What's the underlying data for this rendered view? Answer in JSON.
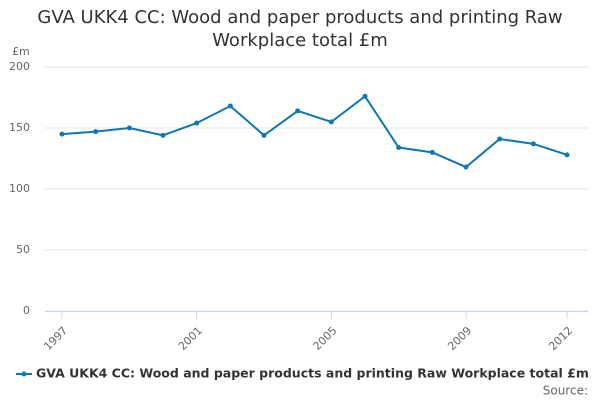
{
  "chart_data": {
    "type": "line",
    "title": "GVA UKK4 CC: Wood and paper products and printing Raw Workplace total £m",
    "y_label": "£m",
    "source": "Source:",
    "x": [
      1997,
      1998,
      1999,
      2000,
      2001,
      2002,
      2003,
      2004,
      2005,
      2006,
      2007,
      2008,
      2009,
      2010,
      2011,
      2012
    ],
    "series": [
      {
        "name": "GVA UKK4 CC: Wood and paper products and printing Raw Workplace total £m",
        "color": "#0f76b8",
        "values": [
          145,
          147,
          150,
          144,
          154,
          168,
          144,
          164,
          155,
          176,
          134,
          130,
          118,
          141,
          137,
          128
        ]
      }
    ],
    "xlim": [
      1997,
      2012
    ],
    "xticks": [
      1997,
      2001,
      2005,
      2009,
      2012
    ],
    "ylim": [
      0,
      200
    ],
    "yticks": [
      0,
      50,
      100,
      150,
      200
    ],
    "grid": true
  }
}
